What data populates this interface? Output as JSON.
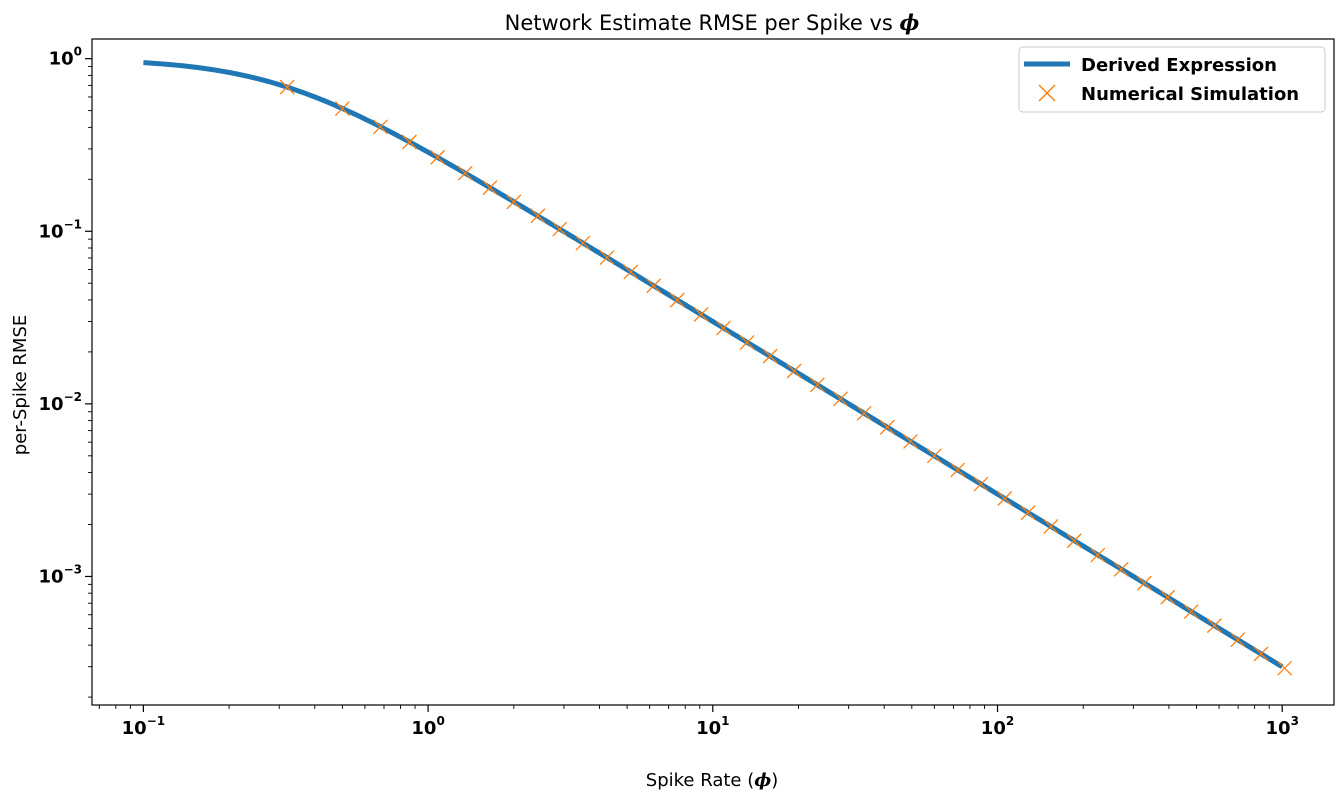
{
  "chart_data": {
    "type": "line",
    "title": "Network Estimate RMSE per Spike vs",
    "title_symbol": "ϕ",
    "xlabel": "Spike Rate (",
    "xlabel_symbol": "ϕ",
    "xlabel_suffix": ")",
    "ylabel": "per-Spike RMSE",
    "xscale": "log",
    "yscale": "log",
    "xlim": [
      0.066,
      1520
    ],
    "ylim": [
      0.00018,
      1.3
    ],
    "xticks": [
      {
        "value": 0.1,
        "base": "10",
        "exp": "−1"
      },
      {
        "value": 1,
        "base": "10",
        "exp": "0"
      },
      {
        "value": 10,
        "base": "10",
        "exp": "1"
      },
      {
        "value": 100,
        "base": "10",
        "exp": "2"
      },
      {
        "value": 1000,
        "base": "10",
        "exp": "3"
      }
    ],
    "yticks": [
      {
        "value": 1,
        "base": "10",
        "exp": "0"
      },
      {
        "value": 0.1,
        "base": "10",
        "exp": "−1"
      },
      {
        "value": 0.01,
        "base": "10",
        "exp": "−2"
      },
      {
        "value": 0.001,
        "base": "10",
        "exp": "−3"
      }
    ],
    "grid": false,
    "legend_position": "upper right",
    "series": [
      {
        "name": "Derived Expression",
        "kind": "line",
        "color": "#1f77b4",
        "formula": "1 / sqrt(1 + (phi / 0.3)^2)",
        "x_range": [
          0.1,
          1000
        ]
      },
      {
        "name": "Numerical Simulation",
        "kind": "marker",
        "marker": "x",
        "color": "#ff7f0e",
        "x": [
          0.32,
          0.5,
          0.68,
          0.86,
          1.08,
          1.35,
          1.65,
          2.0,
          2.43,
          2.9,
          3.5,
          4.25,
          5.15,
          6.2,
          7.5,
          9.1,
          10.9,
          13.2,
          15.9,
          19.3,
          23.3,
          28.1,
          34.0,
          41.0,
          49.5,
          60.0,
          72.5,
          87.5,
          106,
          128,
          154,
          186,
          225,
          272,
          328,
          396,
          479,
          578,
          698,
          843,
          1020
        ],
        "y": [
          0.684,
          0.514,
          0.403,
          0.329,
          0.268,
          0.217,
          0.179,
          0.148,
          0.123,
          0.103,
          0.0854,
          0.0704,
          0.0581,
          0.0483,
          0.0399,
          0.033,
          0.0275,
          0.0227,
          0.0189,
          0.0155,
          0.0129,
          0.0107,
          0.00882,
          0.00732,
          0.00606,
          0.005,
          0.00414,
          0.00343,
          0.00283,
          0.00234,
          0.00195,
          0.00161,
          0.00133,
          0.0011,
          0.000915,
          0.000758,
          0.000626,
          0.000519,
          0.00043,
          0.000356,
          0.000294
        ]
      }
    ]
  }
}
